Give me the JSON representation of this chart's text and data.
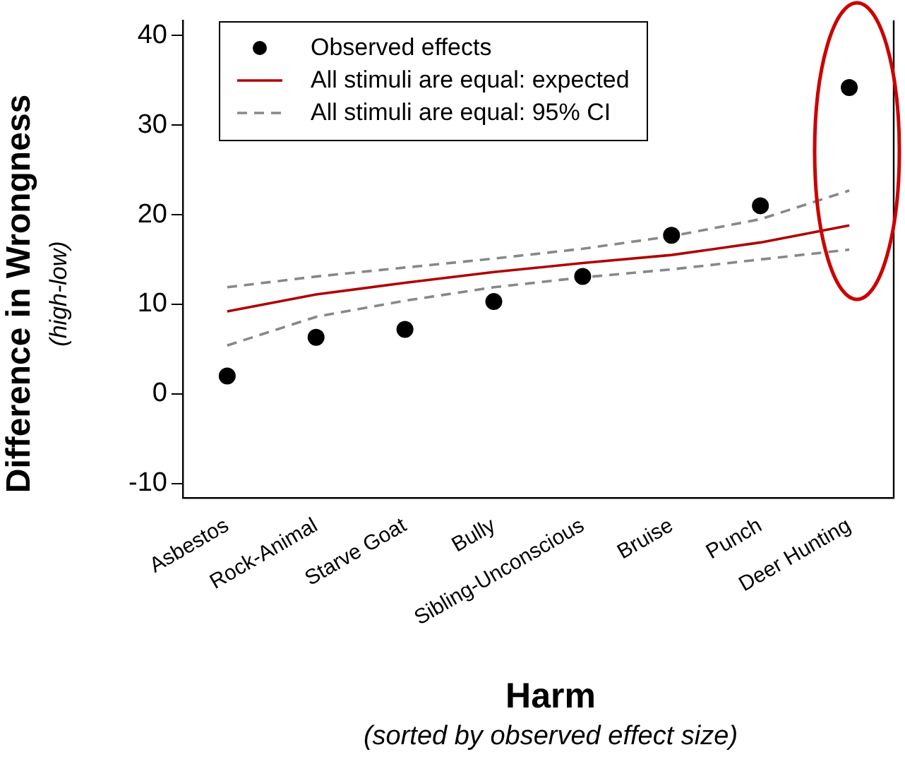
{
  "chart_data": {
    "type": "scatter",
    "xlabel": "Harm\n(sorted by observed effect size)",
    "ylabel": "Difference in Wrongness\n(high-low)",
    "categories": [
      "Asbestos",
      "Rock-Animal",
      "Starve Goat",
      "Bully",
      "Sibling-Unconscious",
      "Bruise",
      "Punch",
      "Deer Hunting"
    ],
    "series": [
      {
        "name": "Observed effects",
        "color": "#000000",
        "marker": "circle",
        "values": [
          2.0,
          6.3,
          7.2,
          10.3,
          13.1,
          17.7,
          21.0,
          34.2
        ]
      },
      {
        "name": "All stimuli are equal: expected",
        "type": "line",
        "color": "#b00000",
        "marker": "none",
        "line_style": "solid",
        "values": [
          9.2,
          11.1,
          12.4,
          13.6,
          14.6,
          15.5,
          16.9,
          18.8
        ]
      },
      {
        "name": "All stimuli are equal: 95% CI",
        "type": "line",
        "color": "#888888",
        "marker": "none",
        "line_style": "dashed",
        "values": [
          11.9,
          13.1,
          14.1,
          15.1,
          16.2,
          17.6,
          19.5,
          22.7
        ]
      },
      {
        "type": "line",
        "color": "#888888",
        "marker": "none",
        "line_style": "dashed",
        "values": [
          5.4,
          8.6,
          10.4,
          11.9,
          13.0,
          13.9,
          15.0,
          16.1
        ]
      }
    ],
    "ylim": [
      -11.6,
      41.7
    ],
    "yticks": [
      -10,
      0,
      10,
      20,
      30,
      40
    ],
    "legend": "top left"
  }
}
